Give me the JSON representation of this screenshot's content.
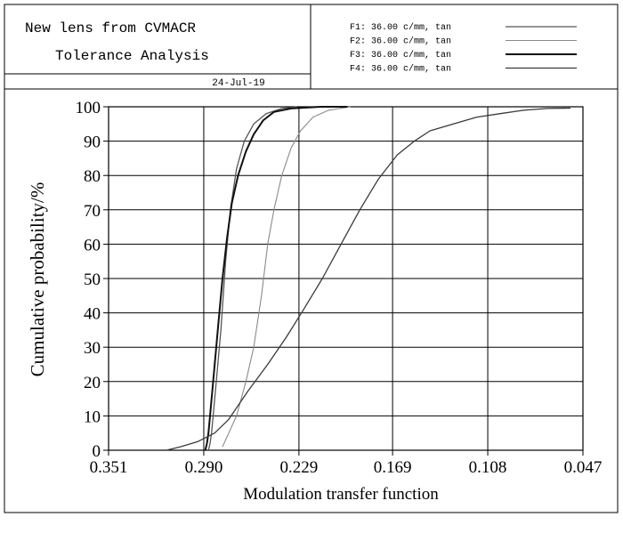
{
  "header": {
    "title_line1": "New lens from CVMACR",
    "title_line2": "Tolerance Analysis",
    "date": "24-Jul-19"
  },
  "legend": {
    "placement": "top-right header box",
    "entries": [
      {
        "label": "F1: 36.00 c/mm, tan",
        "color": "#555555"
      },
      {
        "label": "F2: 36.00 c/mm, tan",
        "color": "#8a8a8a"
      },
      {
        "label": "F3: 36.00 c/mm, tan",
        "color": "#111111"
      },
      {
        "label": "F4: 36.00 c/mm, tan",
        "color": "#3a3a3a"
      }
    ]
  },
  "chart_data": {
    "type": "line",
    "title": "",
    "xlabel": "Modulation transfer function",
    "ylabel": "Cumulative probability/%",
    "x_reversed": true,
    "xlim": [
      0.351,
      0.047
    ],
    "ylim": [
      0,
      100
    ],
    "xticks": [
      0.351,
      0.29,
      0.229,
      0.169,
      0.108,
      0.047
    ],
    "xtick_labels": [
      "0.351",
      "0.290",
      "0.229",
      "0.169",
      "0.108",
      "0.047"
    ],
    "yticks": [
      0,
      10,
      20,
      30,
      40,
      50,
      60,
      70,
      80,
      90,
      100
    ],
    "ytick_labels": [
      "0",
      "10",
      "20",
      "30",
      "40",
      "50",
      "60",
      "70",
      "80",
      "90",
      "100"
    ],
    "grid": true,
    "series": [
      {
        "name": "F1: 36.00 c/mm, tan",
        "color": "#555555",
        "width": 1.3,
        "points": [
          [
            0.287,
            0
          ],
          [
            0.286,
            2
          ],
          [
            0.285,
            5
          ],
          [
            0.284,
            10
          ],
          [
            0.282,
            20
          ],
          [
            0.279,
            35
          ],
          [
            0.276,
            55
          ],
          [
            0.273,
            70
          ],
          [
            0.269,
            82
          ],
          [
            0.264,
            90
          ],
          [
            0.258,
            95
          ],
          [
            0.25,
            98
          ],
          [
            0.24,
            99.5
          ],
          [
            0.23,
            100
          ]
        ]
      },
      {
        "name": "F2: 36.00 c/mm, tan",
        "color": "#8a8a8a",
        "width": 1.1,
        "points": [
          [
            0.278,
            1
          ],
          [
            0.274,
            5
          ],
          [
            0.269,
            10
          ],
          [
            0.263,
            20
          ],
          [
            0.258,
            30
          ],
          [
            0.253,
            45
          ],
          [
            0.249,
            60
          ],
          [
            0.245,
            70
          ],
          [
            0.24,
            80
          ],
          [
            0.234,
            88
          ],
          [
            0.228,
            93
          ],
          [
            0.22,
            97
          ],
          [
            0.21,
            99
          ],
          [
            0.196,
            100
          ]
        ]
      },
      {
        "name": "F3: 36.00 c/mm, tan",
        "color": "#111111",
        "width": 2.0,
        "points": [
          [
            0.289,
            0
          ],
          [
            0.288,
            2
          ],
          [
            0.287,
            5
          ],
          [
            0.286,
            10
          ],
          [
            0.284,
            20
          ],
          [
            0.281,
            35
          ],
          [
            0.278,
            50
          ],
          [
            0.275,
            62
          ],
          [
            0.272,
            72
          ],
          [
            0.268,
            80
          ],
          [
            0.263,
            87
          ],
          [
            0.258,
            92
          ],
          [
            0.252,
            96
          ],
          [
            0.245,
            98.5
          ],
          [
            0.234,
            99.5
          ],
          [
            0.215,
            100
          ],
          [
            0.198,
            100
          ]
        ]
      },
      {
        "name": "F4: 36.00 c/mm, tan",
        "color": "#3a3a3a",
        "width": 1.3,
        "points": [
          [
            0.314,
            0
          ],
          [
            0.305,
            1
          ],
          [
            0.294,
            2.5
          ],
          [
            0.283,
            5
          ],
          [
            0.274,
            9
          ],
          [
            0.262,
            17
          ],
          [
            0.249,
            25
          ],
          [
            0.237,
            33
          ],
          [
            0.226,
            41
          ],
          [
            0.214,
            50
          ],
          [
            0.202,
            60
          ],
          [
            0.19,
            70
          ],
          [
            0.178,
            79
          ],
          [
            0.166,
            86
          ],
          [
            0.155,
            90
          ],
          [
            0.145,
            93
          ],
          [
            0.13,
            95
          ],
          [
            0.115,
            97
          ],
          [
            0.1,
            98
          ],
          [
            0.085,
            99
          ],
          [
            0.07,
            99.5
          ],
          [
            0.055,
            99.6
          ]
        ]
      }
    ]
  }
}
